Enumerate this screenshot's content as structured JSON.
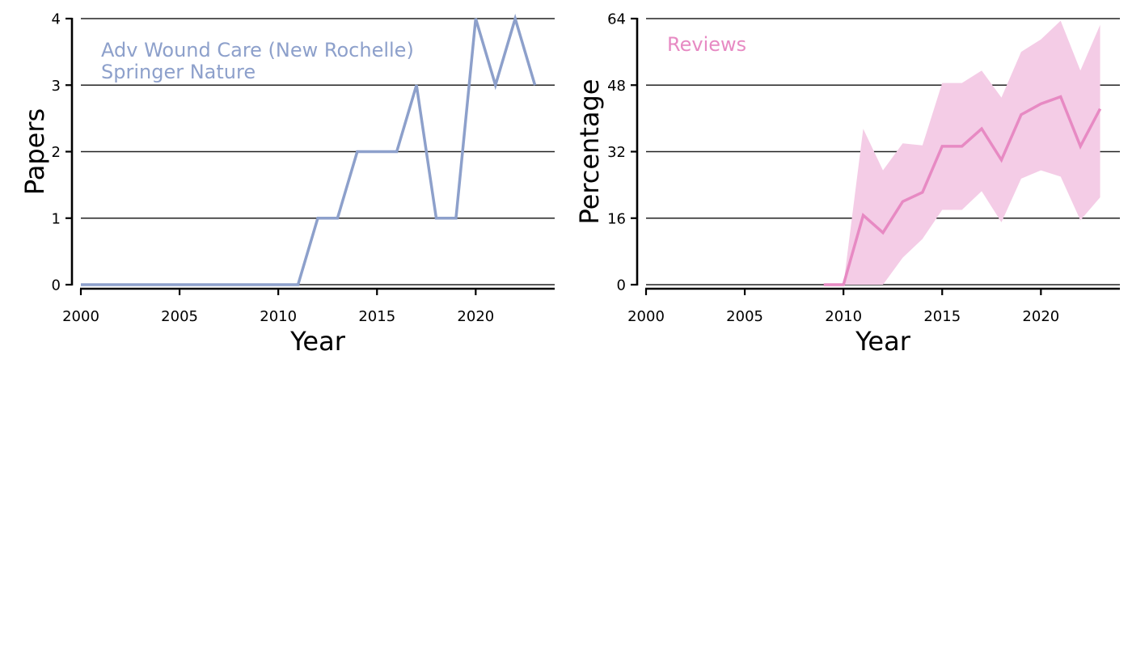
{
  "chart_data": [
    {
      "type": "line",
      "xlabel": "Year",
      "ylabel": "Papers",
      "xlim": [
        2000,
        2024
      ],
      "ylim": [
        0,
        4
      ],
      "xticks": [
        2000,
        2005,
        2010,
        2015,
        2020
      ],
      "yticks": [
        0,
        1,
        2,
        3,
        4
      ],
      "grid": "horizontal",
      "annotation": [
        "Adv Wound Care (New Rochelle)",
        "Springer Nature"
      ],
      "color": "#8da0cb",
      "series": [
        {
          "x": [
            2000,
            2001,
            2002,
            2003,
            2004,
            2005,
            2006,
            2007,
            2008,
            2009,
            2010,
            2011,
            2012,
            2013,
            2014,
            2015,
            2016,
            2017,
            2018,
            2019,
            2020,
            2021,
            2022,
            2023
          ],
          "y": [
            0,
            0,
            0,
            0,
            0,
            0,
            0,
            0,
            0,
            0,
            0,
            0,
            1,
            1,
            2,
            2,
            2,
            3,
            1,
            1,
            4,
            3,
            4,
            3
          ]
        }
      ]
    },
    {
      "type": "area",
      "xlabel": "Year",
      "ylabel": "Percentage",
      "xlim": [
        2000,
        2024
      ],
      "ylim": [
        0,
        64
      ],
      "xticks": [
        2000,
        2005,
        2010,
        2015,
        2020
      ],
      "yticks": [
        0,
        16,
        32,
        48,
        64
      ],
      "grid": "horizontal",
      "annotation": [
        "Reviews"
      ],
      "color": "#e78ac3",
      "band_color": "#f4cce6",
      "series": [
        {
          "x": [
            2009,
            2010,
            2011,
            2012,
            2013,
            2014,
            2015,
            2016,
            2017,
            2018,
            2019,
            2020,
            2021,
            2022,
            2023
          ],
          "y": [
            0,
            0,
            16.7,
            12.5,
            20,
            22.2,
            33.3,
            33.3,
            37.5,
            30,
            40.9,
            43.5,
            45.2,
            33.3,
            42.3
          ],
          "lower": [
            0,
            0,
            0,
            0,
            6.5,
            11,
            18,
            18,
            22.5,
            15,
            25.5,
            27.5,
            26,
            15.5,
            21
          ],
          "upper": [
            0,
            0,
            37.5,
            27.5,
            34,
            33.5,
            48.5,
            48.5,
            51.5,
            45,
            56,
            59,
            63.5,
            51.5,
            62.5
          ]
        }
      ]
    }
  ]
}
